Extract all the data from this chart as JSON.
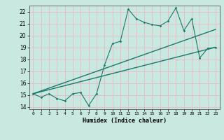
{
  "xlabel": "Humidex (Indice chaleur)",
  "ylabel": "",
  "xlim": [
    -0.5,
    23.5
  ],
  "ylim": [
    13.8,
    22.5
  ],
  "xticks": [
    0,
    1,
    2,
    3,
    4,
    5,
    6,
    7,
    8,
    9,
    10,
    11,
    12,
    13,
    14,
    15,
    16,
    17,
    18,
    19,
    20,
    21,
    22,
    23
  ],
  "yticks": [
    14,
    15,
    16,
    17,
    18,
    19,
    20,
    21,
    22
  ],
  "background_color": "#c8e8e0",
  "grid_color": "#e8b8c8",
  "line_color": "#1a7a6a",
  "line1_x": [
    0,
    1,
    2,
    3,
    4,
    5,
    6,
    7,
    8,
    9,
    10,
    11,
    12,
    13,
    14,
    15,
    16,
    17,
    18,
    19,
    20,
    21,
    22,
    23
  ],
  "line1_y": [
    15.1,
    14.8,
    15.1,
    14.7,
    14.5,
    15.1,
    15.2,
    14.1,
    15.1,
    17.5,
    19.3,
    19.5,
    22.2,
    21.4,
    21.1,
    20.9,
    20.8,
    21.2,
    22.3,
    20.4,
    21.4,
    18.1,
    18.9,
    19.0
  ],
  "line2_x": [
    0,
    23
  ],
  "line2_y": [
    15.1,
    19.0
  ],
  "line3_x": [
    0,
    23
  ],
  "line3_y": [
    15.1,
    20.5
  ]
}
